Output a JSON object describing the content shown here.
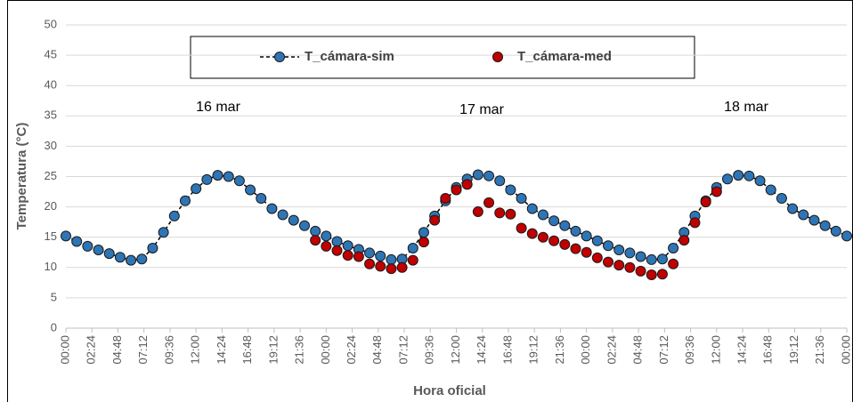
{
  "chart_data": {
    "type": "line",
    "x_label": "Hora oficial",
    "y_label": "Temperatura (°C)",
    "annotations": [
      "16 mar",
      "17 mar",
      "18 mar"
    ],
    "x": [
      0,
      1,
      2,
      3,
      4,
      5,
      6,
      7,
      8,
      9,
      10,
      11,
      12,
      13,
      14,
      15,
      16,
      17,
      18,
      19,
      20,
      21,
      22,
      23,
      24,
      25,
      26,
      27,
      28,
      29,
      30,
      31,
      32,
      33,
      34,
      35,
      36,
      37,
      38,
      39,
      40,
      41,
      42,
      43,
      44,
      45,
      46,
      47,
      48,
      49,
      50,
      51,
      52,
      53,
      54,
      55,
      56,
      57,
      58,
      59,
      60,
      61,
      62,
      63,
      64,
      65,
      66,
      67,
      68,
      69,
      70,
      71,
      72
    ],
    "xlim": [
      0,
      72
    ],
    "xticks": [
      {
        "value": 0,
        "label": "00:00"
      },
      {
        "value": 2.4,
        "label": "02:24"
      },
      {
        "value": 4.8,
        "label": "04:48"
      },
      {
        "value": 7.2,
        "label": "07:12"
      },
      {
        "value": 9.6,
        "label": "09:36"
      },
      {
        "value": 12,
        "label": "12:00"
      },
      {
        "value": 14.4,
        "label": "14:24"
      },
      {
        "value": 16.8,
        "label": "16:48"
      },
      {
        "value": 19.2,
        "label": "19:12"
      },
      {
        "value": 21.6,
        "label": "21:36"
      },
      {
        "value": 24,
        "label": "00:00"
      },
      {
        "value": 26.4,
        "label": "02:24"
      },
      {
        "value": 28.8,
        "label": "04:48"
      },
      {
        "value": 31.2,
        "label": "07:12"
      },
      {
        "value": 33.6,
        "label": "09:36"
      },
      {
        "value": 36,
        "label": "12:00"
      },
      {
        "value": 38.4,
        "label": "14:24"
      },
      {
        "value": 40.8,
        "label": "16:48"
      },
      {
        "value": 43.2,
        "label": "19:12"
      },
      {
        "value": 45.6,
        "label": "21:36"
      },
      {
        "value": 48,
        "label": "00:00"
      },
      {
        "value": 50.4,
        "label": "02:24"
      },
      {
        "value": 52.8,
        "label": "04:48"
      },
      {
        "value": 55.2,
        "label": "07:12"
      },
      {
        "value": 57.6,
        "label": "09:36"
      },
      {
        "value": 60,
        "label": "12:00"
      },
      {
        "value": 62.4,
        "label": "14:24"
      },
      {
        "value": 64.8,
        "label": "16:48"
      },
      {
        "value": 67.2,
        "label": "19:12"
      },
      {
        "value": 69.6,
        "label": "21:36"
      },
      {
        "value": 72,
        "label": "00:00"
      }
    ],
    "ylim": [
      0,
      50
    ],
    "yticks": [
      0,
      5,
      10,
      15,
      20,
      25,
      30,
      35,
      40,
      45,
      50
    ],
    "grid": true,
    "series": [
      {
        "name": "T_cámara-sim",
        "type": "line",
        "color": "#2e75b6",
        "line_color": "#000000",
        "values": [
          15.2,
          14.3,
          13.5,
          12.9,
          12.3,
          11.7,
          11.2,
          11.4,
          13.2,
          15.8,
          18.5,
          21,
          23,
          24.5,
          25.2,
          25,
          24.3,
          22.8,
          21.4,
          19.7,
          18.7,
          17.8,
          16.9,
          16,
          15.2,
          14.3,
          13.6,
          13,
          12.4,
          11.9,
          11.3,
          11.4,
          13.2,
          15.8,
          18.5,
          21,
          23.2,
          24.6,
          25.3,
          25.1,
          24.3,
          22.8,
          21.4,
          19.7,
          18.7,
          17.7,
          16.9,
          16,
          15.2,
          14.4,
          13.6,
          12.9,
          12.4,
          11.8,
          11.3,
          11.4,
          13.2,
          15.8,
          18.5,
          21,
          23.2,
          24.6,
          25.2,
          25.1,
          24.3,
          22.8,
          21.4,
          19.7,
          18.7,
          17.8,
          16.9,
          16,
          15.2
        ]
      },
      {
        "name": "T_cámara-med",
        "type": "scatter",
        "color": "#c00000",
        "values": [
          null,
          null,
          null,
          null,
          null,
          null,
          null,
          null,
          null,
          null,
          null,
          null,
          null,
          null,
          null,
          null,
          null,
          null,
          null,
          null,
          null,
          null,
          null,
          14.5,
          13.5,
          12.8,
          12,
          11.8,
          10.6,
          10.2,
          9.8,
          10,
          11.2,
          14.2,
          17.8,
          21.4,
          22.8,
          23.7,
          19.2,
          20.7,
          19,
          18.8,
          16.5,
          15.6,
          15,
          14.4,
          13.8,
          13.1,
          12.5,
          11.6,
          10.9,
          10.4,
          10,
          9.4,
          8.8,
          8.9,
          10.6,
          14.5,
          17.4,
          20.8,
          22.5,
          null,
          null,
          null,
          null,
          null,
          null,
          null,
          null,
          null,
          null,
          null,
          null
        ]
      }
    ]
  }
}
